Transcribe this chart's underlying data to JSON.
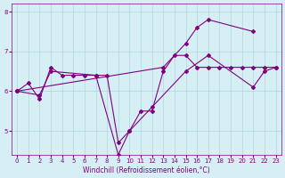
{
  "xlabel": "Windchill (Refroidissement éolien,°C)",
  "ylabel": "",
  "background_color": "#d6eff4",
  "grid_color": "#b0d8e0",
  "line_color": "#800080",
  "x": [
    0,
    1,
    2,
    3,
    4,
    5,
    6,
    7,
    8,
    9,
    10,
    11,
    12,
    13,
    14,
    15,
    16,
    17,
    18,
    19,
    20,
    21,
    22,
    23
  ],
  "y_line1": [
    6.0,
    6.2,
    5.8,
    6.6,
    6.4,
    6.4,
    6.4,
    6.4,
    6.4,
    4.7,
    5.0,
    5.5,
    5.5,
    6.5,
    6.9,
    6.9,
    6.6,
    6.6,
    6.6,
    6.6,
    6.6,
    6.6,
    6.6,
    6.6
  ],
  "y_line2": [
    6.0,
    null,
    5.9,
    6.5,
    null,
    null,
    null,
    6.4,
    null,
    4.4,
    5.0,
    null,
    5.6,
    null,
    null,
    6.5,
    null,
    6.9,
    null,
    null,
    null,
    6.1,
    6.5,
    6.6
  ],
  "y_line3": [
    6.0,
    null,
    null,
    null,
    null,
    null,
    null,
    null,
    null,
    null,
    null,
    null,
    null,
    6.6,
    null,
    7.2,
    7.6,
    7.8,
    null,
    null,
    null,
    7.5,
    null,
    null
  ],
  "ylim": [
    4.4,
    8.2
  ],
  "yticks": [
    5,
    6,
    7,
    8
  ],
  "xlim": [
    -0.5,
    23.5
  ],
  "xticks": [
    0,
    1,
    2,
    3,
    4,
    5,
    6,
    7,
    8,
    9,
    10,
    11,
    12,
    13,
    14,
    15,
    16,
    17,
    18,
    19,
    20,
    21,
    22,
    23
  ],
  "marker_size": 2
}
